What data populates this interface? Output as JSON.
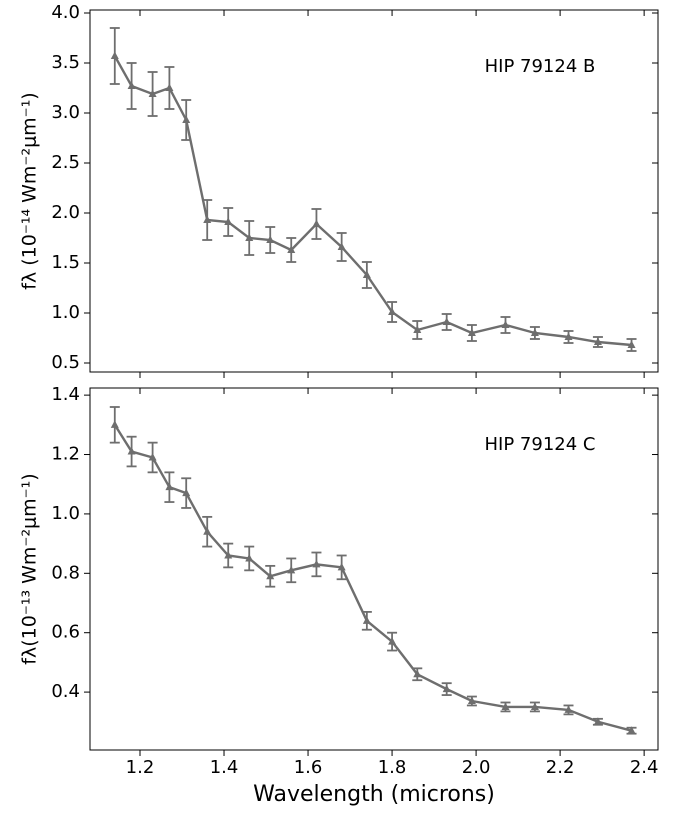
{
  "chart_data": [
    {
      "type": "line",
      "annotation": "HIP 79124 B",
      "ylabel": "fλ (10⁻¹⁴ Wm⁻²μm⁻¹)",
      "x": [
        1.14,
        1.18,
        1.23,
        1.27,
        1.31,
        1.36,
        1.41,
        1.46,
        1.51,
        1.56,
        1.62,
        1.68,
        1.74,
        1.8,
        1.86,
        1.93,
        1.99,
        2.07,
        2.14,
        2.22,
        2.29,
        2.37
      ],
      "series": [
        {
          "color": "#6e6e6e",
          "values": [
            3.57,
            3.27,
            3.19,
            3.25,
            2.93,
            1.93,
            1.91,
            1.75,
            1.73,
            1.63,
            1.89,
            1.66,
            1.38,
            1.01,
            0.83,
            0.91,
            0.8,
            0.88,
            0.8,
            0.76,
            0.71,
            0.68
          ],
          "errors": [
            0.28,
            0.23,
            0.22,
            0.21,
            0.2,
            0.2,
            0.14,
            0.17,
            0.13,
            0.12,
            0.15,
            0.14,
            0.13,
            0.1,
            0.09,
            0.08,
            0.08,
            0.08,
            0.06,
            0.06,
            0.05,
            0.06
          ]
        }
      ],
      "xlim": [
        1.081,
        2.433
      ],
      "xticks": [
        1.2,
        1.4,
        1.6,
        1.8,
        2.0,
        2.2,
        2.4
      ],
      "ylim": [
        0.41,
        4.03
      ],
      "yticks": [
        0.5,
        {
          "value": 1.0,
          "label": "1.0"
        },
        1.5,
        {
          "value": 2.0,
          "label": "2.0"
        },
        2.5,
        {
          "value": 3.0,
          "label": "3.0"
        },
        3.5,
        {
          "value": 4.0,
          "label": "4.0"
        }
      ]
    },
    {
      "type": "line",
      "annotation": "HIP 79124 C",
      "ylabel": "fλ(10⁻¹³ Wm⁻²μm⁻¹)",
      "xlabel": "Wavelength (microns)",
      "x": [
        1.14,
        1.18,
        1.23,
        1.27,
        1.31,
        1.36,
        1.41,
        1.46,
        1.51,
        1.56,
        1.62,
        1.68,
        1.74,
        1.8,
        1.86,
        1.93,
        1.99,
        2.07,
        2.14,
        2.22,
        2.29,
        2.37
      ],
      "series": [
        {
          "color": "#6e6e6e",
          "values": [
            1.3,
            1.21,
            1.19,
            1.09,
            1.07,
            0.94,
            0.86,
            0.85,
            0.79,
            0.81,
            0.83,
            0.82,
            0.64,
            0.57,
            0.46,
            0.41,
            0.37,
            0.35,
            0.35,
            0.34,
            0.3,
            0.27
          ],
          "errors": [
            0.06,
            0.05,
            0.05,
            0.05,
            0.05,
            0.05,
            0.04,
            0.04,
            0.035,
            0.04,
            0.04,
            0.04,
            0.03,
            0.03,
            0.02,
            0.02,
            0.015,
            0.015,
            0.015,
            0.015,
            0.01,
            0.01
          ]
        }
      ],
      "xlim": [
        1.081,
        2.433
      ],
      "xticks": [
        1.2,
        1.4,
        1.6,
        1.8,
        {
          "value": 2.0,
          "label": "2.0"
        },
        2.2,
        2.4
      ],
      "ylim": [
        0.205,
        1.424
      ],
      "yticks": [
        0.4,
        0.6,
        0.8,
        {
          "value": 1.0,
          "label": "1.0"
        },
        1.2,
        1.4
      ]
    }
  ]
}
